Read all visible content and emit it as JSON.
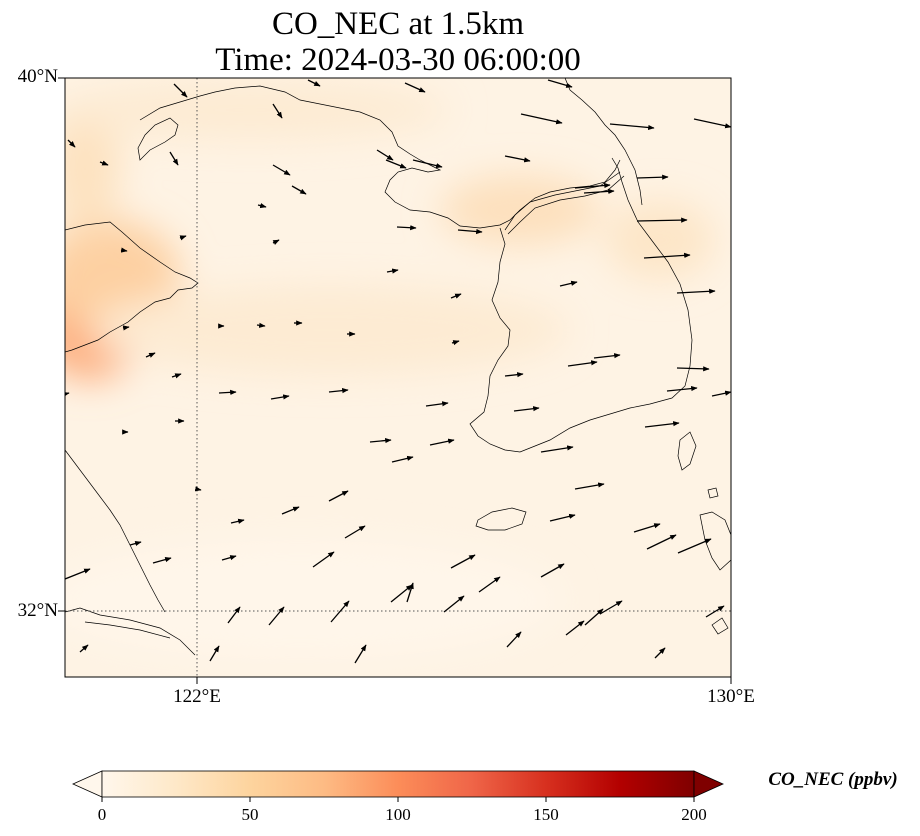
{
  "title": {
    "line1": "CO_NEC at 1.5km",
    "line2": "Time: 2024-03-30 06:00:00"
  },
  "map": {
    "variable": "CO_NEC",
    "level": "1.5km",
    "extent": {
      "lon_min": 120,
      "lon_max": 130,
      "lat_min": 31,
      "lat_max": 40
    },
    "gridlines": {
      "lon": [
        122,
        130
      ],
      "lat": [
        32,
        40
      ]
    },
    "lat_labels": [
      "40°N",
      "32°N"
    ],
    "lon_labels": [
      "122°E",
      "130°E"
    ],
    "features": [
      "coastlines",
      "wind-vectors",
      "concentration-field"
    ]
  },
  "colorbar": {
    "label": "CO_NEC (ppbv)",
    "colormap": "OrRd",
    "min": 0,
    "max": 200,
    "ticks": [
      "0",
      "50",
      "100",
      "150",
      "200"
    ],
    "extend": "both",
    "colors": [
      "#fff7ec",
      "#fee8c8",
      "#fdd49e",
      "#fdbb84",
      "#fc8d59",
      "#ef6548",
      "#d7301f",
      "#b30000",
      "#7f0000"
    ]
  },
  "field_hotspots": [
    {
      "lon": 120.2,
      "lat": 35.3,
      "value": 95
    },
    {
      "lon": 120.4,
      "lat": 35.7,
      "value": 75
    },
    {
      "lon": 120.3,
      "lat": 38.6,
      "value": 50
    },
    {
      "lon": 126.5,
      "lat": 37.4,
      "value": 40
    },
    {
      "lon": 128.6,
      "lat": 37.0,
      "value": 30
    },
    {
      "lon": 123.5,
      "lat": 36.4,
      "value": 18
    }
  ]
}
